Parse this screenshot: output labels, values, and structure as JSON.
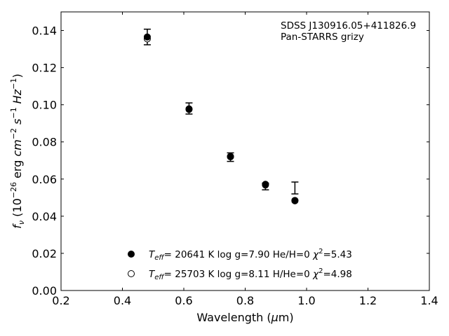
{
  "chart_data": {
    "type": "scatter",
    "xlabel": "Wavelength (μm)",
    "ylabel": "fν (10⁻²⁶ erg cm⁻² s⁻¹ Hz⁻¹)",
    "xlim": [
      0.2,
      1.4
    ],
    "ylim": [
      0.0,
      0.15
    ],
    "x_ticks": [
      "0.2",
      "0.4",
      "0.6",
      "0.8",
      "1.0",
      "1.2",
      "1.4"
    ],
    "y_ticks": [
      "0.00",
      "0.02",
      "0.04",
      "0.06",
      "0.08",
      "0.10",
      "0.12",
      "0.14"
    ],
    "grid": false,
    "annotations": [
      "SDSS J130916.05+411826.9",
      "Pan-STARRS grizy"
    ],
    "observed": {
      "x": [
        0.481,
        0.617,
        0.752,
        0.866,
        0.962
      ],
      "y": [
        0.1365,
        0.098,
        0.0718,
        0.056,
        0.0552
      ],
      "err": [
        0.0042,
        0.003,
        0.0023,
        0.0018,
        0.0032
      ]
    },
    "series": [
      {
        "marker": "filled",
        "legend": "Teff= 20641 K  log g=7.90  He/H=0  χ2=5.43",
        "x": [
          0.481,
          0.617,
          0.752,
          0.866,
          0.962
        ],
        "y": [
          0.1365,
          0.0978,
          0.0722,
          0.0572,
          0.0485
        ]
      },
      {
        "marker": "open",
        "legend": "Teff= 25703 K  log g=8.11  H/He=0  χ2=4.98",
        "x": [
          0.481,
          0.617,
          0.752,
          0.866,
          0.962
        ],
        "y": [
          0.1355,
          0.0975,
          0.072,
          0.0568,
          0.0483
        ]
      }
    ],
    "legend_position": "bottom-center"
  }
}
